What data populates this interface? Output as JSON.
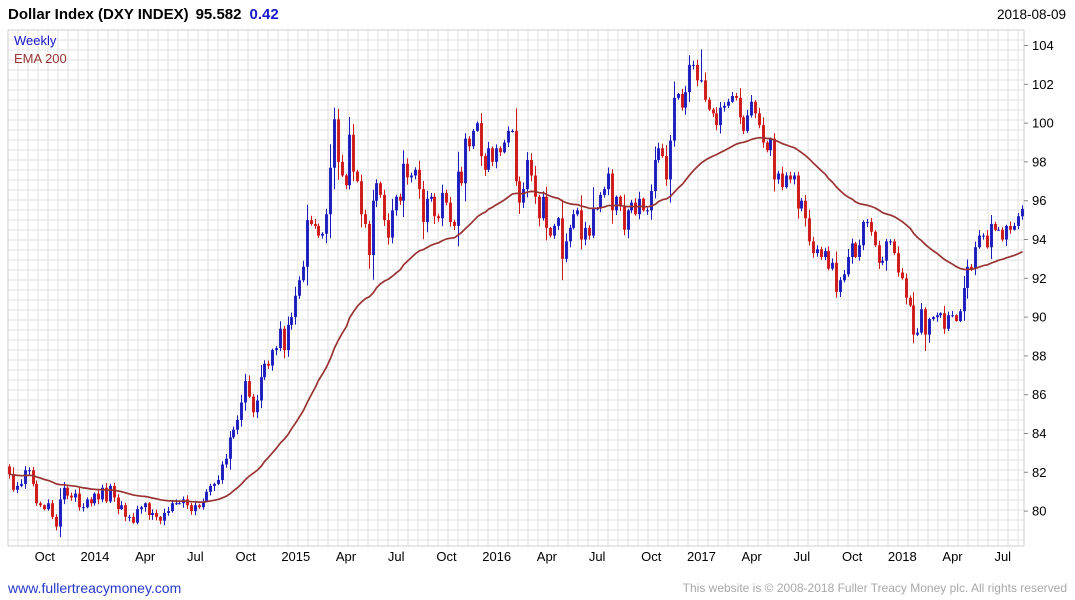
{
  "header": {
    "title": "Dollar Index (DXY INDEX)",
    "price": "95.582",
    "change": "0.42",
    "date": "2018-08-09"
  },
  "legend": {
    "timeframe": "Weekly",
    "overlay": "EMA 200"
  },
  "footer": {
    "site": "www.fullertreacymoney.com",
    "copyright": "This website is © 2008-2018 Fuller Treacy Money plc. All rights reserved"
  },
  "colors": {
    "up": "#1c1cbe",
    "down": "#d01818",
    "ema": "#993333",
    "accent_blue": "#1717cf",
    "grid": "#e2e2e2",
    "axis_text": "#000000",
    "footer_text": "#a8a8a8"
  },
  "chart_data": {
    "type": "candlestick",
    "title": "Dollar Index (DXY INDEX)",
    "timeframe": "weekly",
    "last_price": 95.582,
    "change": 0.42,
    "date": "2018-08-09",
    "legend": [
      "Weekly",
      "EMA 200"
    ],
    "y_axis": {
      "min": 78.2,
      "max": 104.8,
      "ticks": [
        104,
        102,
        100,
        98,
        96,
        94,
        92,
        90,
        88,
        86,
        84,
        82,
        80
      ]
    },
    "x_labels": [
      {
        "label": "Oct",
        "week": 9
      },
      {
        "label": "2014",
        "week": 22
      },
      {
        "label": "Apr",
        "week": 35
      },
      {
        "label": "Jul",
        "week": 48
      },
      {
        "label": "Oct",
        "week": 61
      },
      {
        "label": "2015",
        "week": 74
      },
      {
        "label": "Apr",
        "week": 87
      },
      {
        "label": "Jul",
        "week": 100
      },
      {
        "label": "Oct",
        "week": 113
      },
      {
        "label": "2016",
        "week": 126
      },
      {
        "label": "Apr",
        "week": 139
      },
      {
        "label": "Jul",
        "week": 152
      },
      {
        "label": "Oct",
        "week": 166
      },
      {
        "label": "2017",
        "week": 179
      },
      {
        "label": "Apr",
        "week": 192
      },
      {
        "label": "Jul",
        "week": 205
      },
      {
        "label": "Oct",
        "week": 218
      },
      {
        "label": "2018",
        "week": 231
      },
      {
        "label": "Apr",
        "week": 244
      },
      {
        "label": "Jul",
        "week": 257
      }
    ],
    "closes": [
      81.9,
      81.1,
      81.3,
      81.4,
      82.1,
      82.1,
      81.4,
      80.4,
      80.3,
      80.1,
      80.4,
      79.7,
      79.2,
      80.6,
      81.2,
      80.8,
      80.7,
      80.9,
      80.2,
      80.2,
      80.6,
      80.4,
      80.9,
      80.6,
      81.2,
      80.5,
      81.3,
      80.7,
      80.1,
      80.3,
      79.7,
      79.7,
      79.4,
      80.1,
      80.2,
      80.4,
      79.8,
      79.9,
      79.7,
      79.5,
      79.9,
      80.0,
      80.4,
      80.4,
      80.4,
      80.6,
      80.3,
      80.0,
      80.3,
      80.2,
      80.5,
      81.0,
      81.3,
      81.4,
      81.6,
      82.4,
      82.7,
      83.8,
      84.2,
      84.7,
      85.6,
      86.7,
      85.9,
      85.1,
      85.7,
      86.9,
      87.6,
      87.5,
      88.3,
      88.4,
      89.4,
      88.3,
      89.6,
      90.0,
      91.1,
      91.9,
      92.6,
      95.0,
      94.8,
      94.7,
      94.2,
      94.3,
      95.3,
      97.7,
      100.2,
      98.0,
      97.3,
      96.8,
      99.4,
      97.5,
      97.0,
      95.3,
      94.8,
      93.2,
      96.0,
      96.9,
      96.3,
      95.0,
      94.1,
      95.5,
      96.2,
      96.0,
      97.9,
      97.2,
      97.3,
      97.6,
      96.6,
      94.9,
      96.1,
      96.2,
      95.2,
      95.1,
      96.4,
      95.9,
      94.9,
      94.7,
      97.5,
      96.9,
      99.2,
      98.8,
      99.6,
      100.0,
      98.3,
      97.6,
      98.7,
      98.0,
      98.7,
      98.5,
      99.0,
      99.6,
      99.6,
      97.0,
      95.9,
      96.6,
      98.1,
      97.3,
      96.2,
      95.1,
      96.2,
      94.6,
      94.2,
      94.7,
      95.1,
      93.0,
      93.9,
      94.6,
      95.3,
      95.5,
      94.0,
      94.6,
      94.2,
      95.6,
      95.6,
      96.3,
      96.6,
      97.4,
      95.5,
      96.2,
      95.7,
      94.5,
      95.5,
      95.9,
      95.3,
      96.1,
      95.5,
      95.5,
      96.5,
      98.1,
      98.7,
      98.3,
      97.1,
      99.1,
      101.3,
      101.5,
      100.8,
      101.6,
      103.0,
      103.0,
      102.2,
      102.2,
      101.2,
      100.7,
      100.5,
      99.9,
      100.8,
      100.9,
      101.1,
      101.4,
      101.3,
      100.3,
      99.6,
      100.4,
      101.1,
      100.5,
      99.9,
      99.0,
      98.6,
      99.2,
      97.1,
      97.4,
      96.7,
      97.3,
      97.1,
      97.3,
      95.6,
      96.0,
      95.1,
      93.9,
      93.3,
      93.5,
      93.1,
      93.4,
      92.5,
      92.8,
      91.3,
      91.9,
      92.2,
      93.1,
      93.8,
      93.1,
      93.7,
      94.9,
      94.9,
      94.4,
      93.7,
      92.8,
      92.9,
      93.9,
      93.9,
      93.3,
      92.3,
      92.0,
      91.0,
      90.6,
      89.1,
      89.2,
      90.4,
      89.1,
      89.9,
      90.0,
      90.1,
      90.2,
      89.4,
      90.1,
      90.1,
      89.8,
      90.3,
      91.5,
      92.6,
      92.5,
      93.6,
      94.2,
      94.2,
      93.6,
      94.8,
      94.5,
      94.5,
      94.0,
      94.7,
      94.5,
      94.7,
      95.2,
      95.58
    ],
    "wick_overrides": {
      "12": {
        "l": 79.0
      },
      "84": {
        "h": 100.8
      },
      "143": {
        "l": 91.9
      },
      "151": {
        "h": 96.7
      },
      "171": {
        "l": 95.9
      },
      "176": {
        "h": 103.5
      },
      "179": {
        "h": 103.8
      },
      "214": {
        "l": 91.0
      },
      "237": {
        "l": 88.25
      }
    },
    "ema": {
      "label": "EMA 200",
      "period_weeks": 45
    }
  }
}
